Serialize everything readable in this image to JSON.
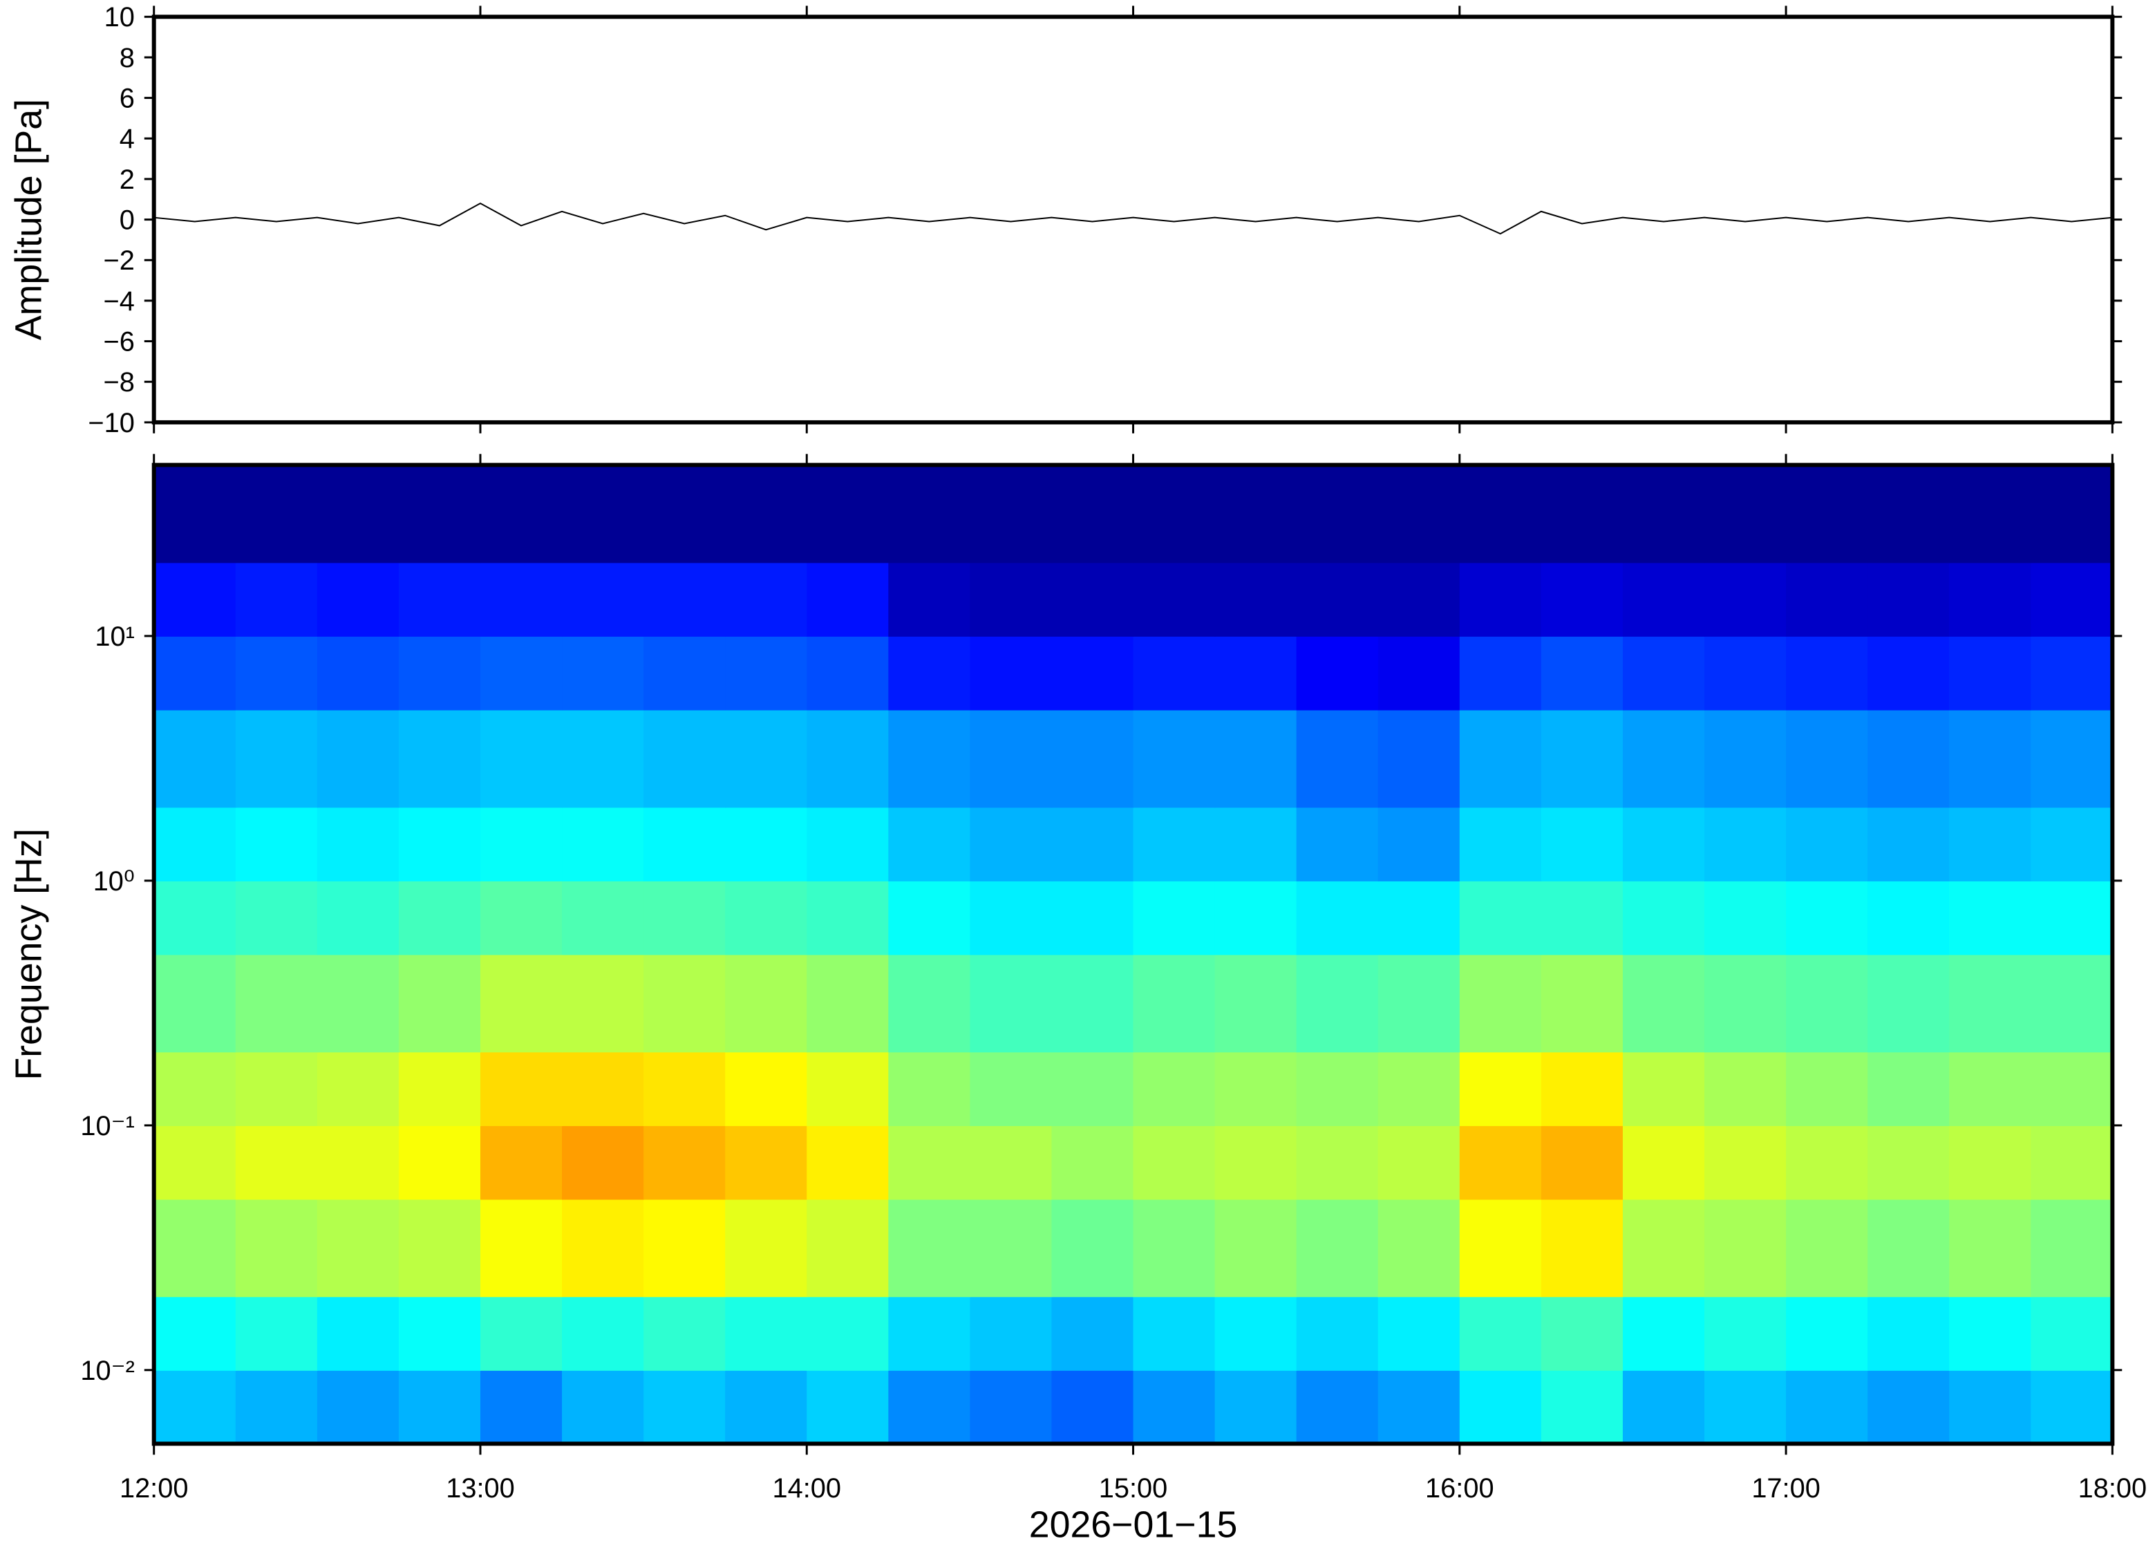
{
  "chart_data": [
    {
      "type": "line",
      "ylabel": "Amplitude [Pa]",
      "color": "#000000",
      "xlim": [
        12,
        18
      ],
      "xticks": [
        12,
        13,
        14,
        15,
        16,
        17,
        18
      ],
      "ylim": [
        -10,
        10
      ],
      "yticks": [
        10,
        8,
        6,
        4,
        2,
        0,
        {
          "value": -2,
          "label": "−2"
        },
        {
          "value": -4,
          "label": "−4"
        },
        {
          "value": -6,
          "label": "−6"
        },
        {
          "value": -8,
          "label": "−8"
        },
        {
          "value": -10,
          "label": "−10"
        }
      ],
      "x": [
        12,
        12.125,
        12.25,
        12.375,
        12.5,
        12.625,
        12.75,
        12.875,
        13,
        13.125,
        13.25,
        13.375,
        13.5,
        13.625,
        13.75,
        13.875,
        14,
        14.125,
        14.25,
        14.375,
        14.5,
        14.625,
        14.75,
        14.875,
        15,
        15.125,
        15.25,
        15.375,
        15.5,
        15.625,
        15.75,
        15.875,
        16,
        16.125,
        16.25,
        16.375,
        16.5,
        16.625,
        16.75,
        16.875,
        17,
        17.125,
        17.25,
        17.375,
        17.5,
        17.625,
        17.75,
        17.875,
        18
      ],
      "values": [
        0.1,
        -0.1,
        0.1,
        -0.1,
        0.1,
        -0.2,
        0.1,
        -0.3,
        0.8,
        -0.3,
        0.4,
        -0.2,
        0.3,
        -0.2,
        0.2,
        -0.5,
        0.1,
        -0.1,
        0.1,
        -0.1,
        0.1,
        -0.1,
        0.1,
        -0.1,
        0.1,
        -0.1,
        0.1,
        -0.1,
        0.1,
        -0.1,
        0.1,
        -0.1,
        0.2,
        -0.7,
        0.4,
        -0.2,
        0.1,
        -0.1,
        0.1,
        -0.1,
        0.1,
        -0.1,
        0.1,
        -0.1,
        0.1,
        -0.1,
        0.1,
        -0.1,
        0.1
      ]
    },
    {
      "type": "heatmap",
      "ylabel": "Frequency [Hz]",
      "xlabel": "2026−01−15",
      "colormap": "jet",
      "clim": [
        0,
        1
      ],
      "log_y": true,
      "xlim": [
        12,
        18
      ],
      "xticks": [
        {
          "value": 12,
          "label": "12:00"
        },
        {
          "value": 13,
          "label": "13:00"
        },
        {
          "value": 14,
          "label": "14:00"
        },
        {
          "value": 15,
          "label": "15:00"
        },
        {
          "value": 16,
          "label": "16:00"
        },
        {
          "value": 17,
          "label": "17:00"
        },
        {
          "value": 18,
          "label": "18:00"
        }
      ],
      "ylim": [
        0.005,
        50
      ],
      "yticks": [
        {
          "value": 10,
          "label": "10¹"
        },
        {
          "value": 1,
          "label": "10⁰"
        },
        {
          "value": 0.1,
          "label": "10⁻¹"
        },
        {
          "value": 0.01,
          "label": "10⁻²"
        }
      ],
      "x_bins": [
        12,
        12.25,
        12.5,
        12.75,
        13,
        13.25,
        13.5,
        13.75,
        14,
        14.25,
        14.5,
        14.75,
        15,
        15.25,
        15.5,
        15.75,
        16,
        16.25,
        16.5,
        16.75,
        17,
        17.25,
        17.5,
        17.75,
        18
      ],
      "y_bins": [
        0.005,
        0.01,
        0.02,
        0.05,
        0.1,
        0.2,
        0.5,
        1,
        2,
        5,
        10,
        20,
        50
      ],
      "values": [
        [
          0.32,
          0.3,
          0.28,
          0.3,
          0.25,
          0.3,
          0.32,
          0.3,
          0.33,
          0.26,
          0.24,
          0.22,
          0.27,
          0.3,
          0.26,
          0.28,
          0.36,
          0.4,
          0.3,
          0.32,
          0.3,
          0.28,
          0.3,
          0.32
        ],
        [
          0.38,
          0.4,
          0.36,
          0.38,
          0.42,
          0.4,
          0.42,
          0.4,
          0.4,
          0.34,
          0.32,
          0.3,
          0.34,
          0.36,
          0.34,
          0.36,
          0.42,
          0.44,
          0.38,
          0.4,
          0.38,
          0.36,
          0.38,
          0.4
        ],
        [
          0.52,
          0.54,
          0.55,
          0.56,
          0.62,
          0.64,
          0.63,
          0.6,
          0.58,
          0.5,
          0.5,
          0.48,
          0.5,
          0.52,
          0.5,
          0.52,
          0.62,
          0.64,
          0.55,
          0.54,
          0.52,
          0.5,
          0.52,
          0.5
        ],
        [
          0.58,
          0.6,
          0.6,
          0.62,
          0.7,
          0.72,
          0.7,
          0.68,
          0.64,
          0.55,
          0.55,
          0.53,
          0.55,
          0.56,
          0.55,
          0.56,
          0.68,
          0.7,
          0.6,
          0.58,
          0.56,
          0.55,
          0.56,
          0.55
        ],
        [
          0.55,
          0.56,
          0.57,
          0.6,
          0.66,
          0.66,
          0.65,
          0.63,
          0.6,
          0.52,
          0.5,
          0.5,
          0.52,
          0.53,
          0.52,
          0.53,
          0.62,
          0.64,
          0.56,
          0.54,
          0.52,
          0.5,
          0.52,
          0.52
        ],
        [
          0.48,
          0.5,
          0.5,
          0.52,
          0.56,
          0.56,
          0.55,
          0.54,
          0.52,
          0.46,
          0.44,
          0.44,
          0.46,
          0.47,
          0.45,
          0.46,
          0.52,
          0.53,
          0.48,
          0.47,
          0.46,
          0.45,
          0.46,
          0.46
        ],
        [
          0.42,
          0.43,
          0.42,
          0.44,
          0.46,
          0.45,
          0.45,
          0.44,
          0.43,
          0.38,
          0.36,
          0.36,
          0.38,
          0.38,
          0.36,
          0.36,
          0.42,
          0.42,
          0.4,
          0.39,
          0.38,
          0.37,
          0.38,
          0.38
        ],
        [
          0.36,
          0.37,
          0.36,
          0.37,
          0.38,
          0.38,
          0.37,
          0.37,
          0.36,
          0.32,
          0.3,
          0.3,
          0.32,
          0.32,
          0.28,
          0.27,
          0.34,
          0.35,
          0.33,
          0.32,
          0.31,
          0.3,
          0.31,
          0.32
        ],
        [
          0.3,
          0.31,
          0.3,
          0.31,
          0.32,
          0.32,
          0.31,
          0.31,
          0.3,
          0.27,
          0.26,
          0.26,
          0.27,
          0.27,
          0.23,
          0.22,
          0.29,
          0.3,
          0.28,
          0.27,
          0.26,
          0.25,
          0.26,
          0.27
        ],
        [
          0.2,
          0.21,
          0.2,
          0.21,
          0.22,
          0.22,
          0.21,
          0.21,
          0.2,
          0.15,
          0.14,
          0.14,
          0.15,
          0.15,
          0.12,
          0.11,
          0.18,
          0.2,
          0.18,
          0.17,
          0.16,
          0.15,
          0.16,
          0.17
        ],
        [
          0.14,
          0.15,
          0.14,
          0.15,
          0.15,
          0.15,
          0.15,
          0.15,
          0.14,
          0.06,
          0.05,
          0.05,
          0.05,
          0.05,
          0.05,
          0.05,
          0.08,
          0.09,
          0.08,
          0.08,
          0.07,
          0.07,
          0.08,
          0.09
        ],
        [
          0.02,
          0.02,
          0.02,
          0.02,
          0.02,
          0.02,
          0.02,
          0.02,
          0.02,
          0.02,
          0.02,
          0.02,
          0.02,
          0.02,
          0.02,
          0.02,
          0.02,
          0.02,
          0.02,
          0.02,
          0.02,
          0.02,
          0.02,
          0.02
        ]
      ]
    }
  ]
}
